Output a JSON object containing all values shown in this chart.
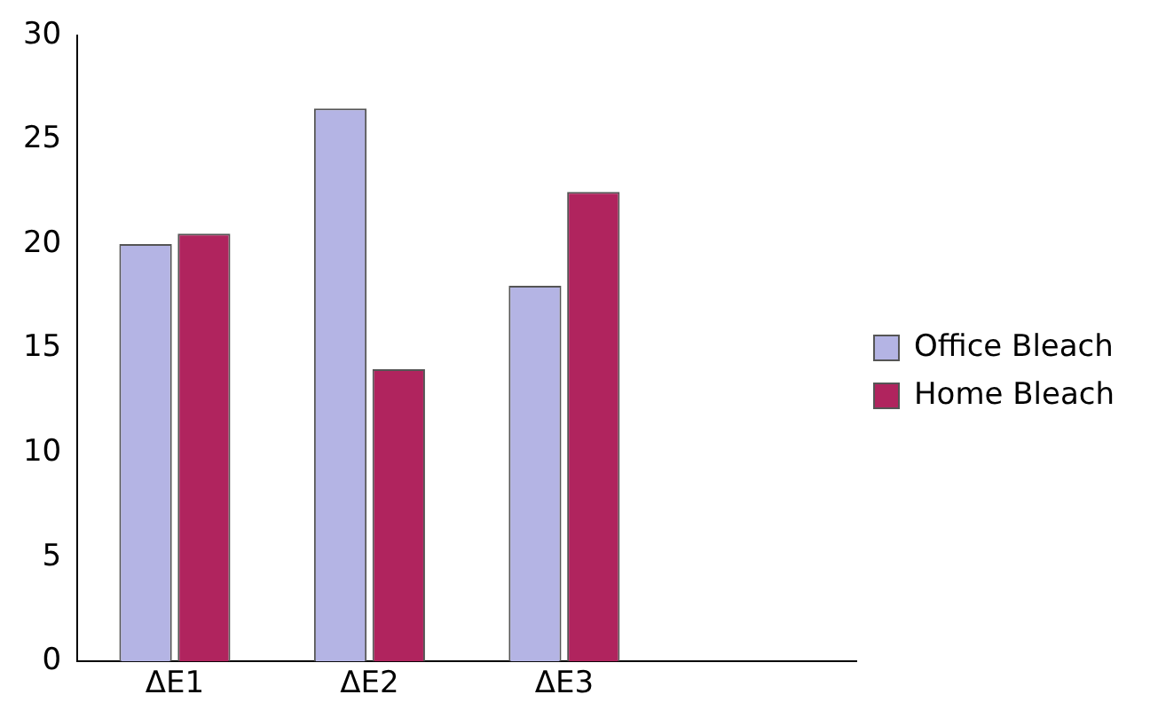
{
  "chart_data": {
    "type": "bar",
    "categories": [
      "ΔE1",
      "ΔE2",
      "ΔE3",
      null
    ],
    "series": [
      {
        "name": "Office Bleach",
        "color": "#b4b4e4",
        "values": [
          20,
          26.5,
          18,
          null
        ]
      },
      {
        "name": "Home Bleach",
        "color": "#b0245e",
        "values": [
          20.5,
          14,
          22.5,
          null
        ]
      }
    ],
    "ylim": [
      0,
      30
    ],
    "yticks": [
      0,
      5,
      10,
      15,
      20,
      25,
      30
    ],
    "grid": false,
    "legend": "right"
  }
}
